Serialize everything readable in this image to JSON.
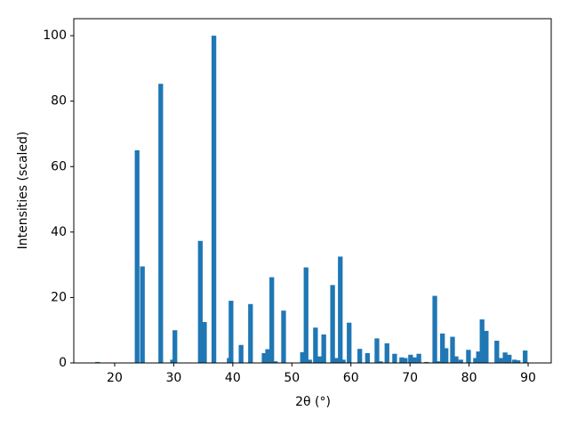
{
  "chart_data": {
    "type": "bar",
    "xlabel": "2θ (°)",
    "ylabel": "Intensities (scaled)",
    "x": [
      17.1,
      23.8,
      24.7,
      27.8,
      29.8,
      30.2,
      34.5,
      35.2,
      36.8,
      39.4,
      39.7,
      41.4,
      43.0,
      45.3,
      45.9,
      46.6,
      47.2,
      48.6,
      51.8,
      52.4,
      53.0,
      54.0,
      54.6,
      55.4,
      56.9,
      57.5,
      58.2,
      58.7,
      59.7,
      61.5,
      62.8,
      64.4,
      65.0,
      66.1,
      67.4,
      68.6,
      69.2,
      70.1,
      70.7,
      71.5,
      72.8,
      74.2,
      74.8,
      75.5,
      76.1,
      77.2,
      77.8,
      78.6,
      79.9,
      81.1,
      81.6,
      82.2,
      82.9,
      84.7,
      85.3,
      86.1,
      86.8,
      87.7,
      88.3,
      89.5
    ],
    "values": [
      0.3,
      65,
      29.5,
      85.3,
      1,
      10,
      37.3,
      12.5,
      100,
      1.5,
      19,
      5.5,
      18,
      3,
      4.2,
      26.2,
      0.5,
      16,
      3.3,
      29.2,
      1,
      10.8,
      2,
      8.7,
      23.8,
      1.5,
      32.5,
      1,
      12.3,
      4.3,
      3,
      7.5,
      0.5,
      6,
      2.8,
      1.7,
      1.5,
      2.5,
      1.7,
      2.8,
      0.3,
      20.5,
      0.5,
      9,
      4.5,
      8,
      2,
      1,
      4,
      1.5,
      3.5,
      13.3,
      9.8,
      6.8,
      1.5,
      3.2,
      2.5,
      1,
      0.8,
      3.8
    ],
    "color": "#1f77b4",
    "xlim": [
      13.08,
      93.91
    ],
    "xticks": [
      20,
      30,
      40,
      50,
      60,
      70,
      80,
      90
    ],
    "ylim": [
      0,
      105.2
    ],
    "yticks": [
      0,
      20,
      40,
      60,
      80,
      100
    ],
    "grid": false
  }
}
